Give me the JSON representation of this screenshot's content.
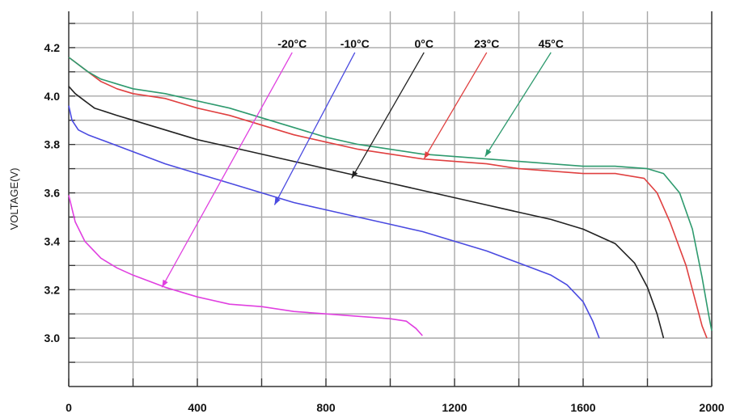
{
  "chart_data": {
    "type": "line",
    "ylabel": "VOLTAGE(V)",
    "xlabel": "",
    "xlim": [
      0,
      2000
    ],
    "ylim": [
      2.8,
      4.35
    ],
    "x_ticks": [
      "0",
      "400",
      "800",
      "1200",
      "1600",
      "2000"
    ],
    "y_ticks": [
      "3.0",
      "3.2",
      "3.4",
      "3.6",
      "3.8",
      "4.0",
      "4.2"
    ],
    "grid": true,
    "legend_placement": "top-center, labels with arrows pointing to curves",
    "series": [
      {
        "name": "-20°C",
        "color": "#e040e0",
        "label_pos": [
          695,
          4.2
        ],
        "arrow_to": [
          290,
          3.21
        ],
        "points": [
          [
            0,
            3.59
          ],
          [
            20,
            3.48
          ],
          [
            50,
            3.4
          ],
          [
            100,
            3.33
          ],
          [
            150,
            3.29
          ],
          [
            200,
            3.26
          ],
          [
            300,
            3.21
          ],
          [
            400,
            3.17
          ],
          [
            500,
            3.14
          ],
          [
            600,
            3.13
          ],
          [
            700,
            3.11
          ],
          [
            800,
            3.1
          ],
          [
            900,
            3.09
          ],
          [
            1000,
            3.08
          ],
          [
            1050,
            3.07
          ],
          [
            1080,
            3.04
          ],
          [
            1100,
            3.01
          ]
        ]
      },
      {
        "name": "-10°C",
        "color": "#4a4ae0",
        "label_pos": [
          890,
          4.2
        ],
        "arrow_to": [
          640,
          3.55
        ],
        "points": [
          [
            0,
            3.96
          ],
          [
            10,
            3.9
          ],
          [
            30,
            3.86
          ],
          [
            60,
            3.84
          ],
          [
            100,
            3.82
          ],
          [
            200,
            3.77
          ],
          [
            300,
            3.72
          ],
          [
            400,
            3.68
          ],
          [
            500,
            3.64
          ],
          [
            600,
            3.6
          ],
          [
            700,
            3.56
          ],
          [
            800,
            3.53
          ],
          [
            900,
            3.5
          ],
          [
            1000,
            3.47
          ],
          [
            1100,
            3.44
          ],
          [
            1200,
            3.4
          ],
          [
            1300,
            3.36
          ],
          [
            1400,
            3.31
          ],
          [
            1500,
            3.26
          ],
          [
            1550,
            3.22
          ],
          [
            1600,
            3.15
          ],
          [
            1630,
            3.07
          ],
          [
            1650,
            3.0
          ]
        ]
      },
      {
        "name": "0°C",
        "color": "#222222",
        "label_pos": [
          1105,
          4.2
        ],
        "arrow_to": [
          880,
          3.66
        ],
        "points": [
          [
            0,
            4.04
          ],
          [
            20,
            4.01
          ],
          [
            50,
            3.98
          ],
          [
            80,
            3.95
          ],
          [
            150,
            3.92
          ],
          [
            200,
            3.9
          ],
          [
            300,
            3.86
          ],
          [
            400,
            3.82
          ],
          [
            500,
            3.79
          ],
          [
            600,
            3.76
          ],
          [
            700,
            3.73
          ],
          [
            800,
            3.7
          ],
          [
            900,
            3.67
          ],
          [
            1000,
            3.64
          ],
          [
            1100,
            3.61
          ],
          [
            1200,
            3.58
          ],
          [
            1300,
            3.55
          ],
          [
            1400,
            3.52
          ],
          [
            1500,
            3.49
          ],
          [
            1600,
            3.45
          ],
          [
            1700,
            3.39
          ],
          [
            1760,
            3.31
          ],
          [
            1800,
            3.21
          ],
          [
            1830,
            3.1
          ],
          [
            1850,
            3.0
          ]
        ]
      },
      {
        "name": "23°C",
        "color": "#e04040",
        "label_pos": [
          1300,
          4.2
        ],
        "arrow_to": [
          1105,
          3.74
        ],
        "points": [
          [
            0,
            4.16
          ],
          [
            20,
            4.14
          ],
          [
            60,
            4.1
          ],
          [
            100,
            4.06
          ],
          [
            150,
            4.03
          ],
          [
            200,
            4.01
          ],
          [
            300,
            3.99
          ],
          [
            400,
            3.95
          ],
          [
            500,
            3.92
          ],
          [
            600,
            3.88
          ],
          [
            700,
            3.84
          ],
          [
            800,
            3.81
          ],
          [
            900,
            3.78
          ],
          [
            1000,
            3.76
          ],
          [
            1100,
            3.74
          ],
          [
            1200,
            3.73
          ],
          [
            1300,
            3.72
          ],
          [
            1400,
            3.7
          ],
          [
            1500,
            3.69
          ],
          [
            1600,
            3.68
          ],
          [
            1700,
            3.68
          ],
          [
            1790,
            3.66
          ],
          [
            1830,
            3.6
          ],
          [
            1870,
            3.48
          ],
          [
            1920,
            3.3
          ],
          [
            1950,
            3.15
          ],
          [
            1970,
            3.05
          ],
          [
            1985,
            3.0
          ]
        ]
      },
      {
        "name": "45°C",
        "color": "#2e9a6e",
        "label_pos": [
          1500,
          4.2
        ],
        "arrow_to": [
          1295,
          3.75
        ],
        "points": [
          [
            0,
            4.16
          ],
          [
            20,
            4.14
          ],
          [
            60,
            4.1
          ],
          [
            100,
            4.07
          ],
          [
            150,
            4.05
          ],
          [
            200,
            4.03
          ],
          [
            300,
            4.01
          ],
          [
            400,
            3.98
          ],
          [
            500,
            3.95
          ],
          [
            600,
            3.91
          ],
          [
            700,
            3.87
          ],
          [
            800,
            3.83
          ],
          [
            900,
            3.8
          ],
          [
            1000,
            3.78
          ],
          [
            1100,
            3.76
          ],
          [
            1200,
            3.75
          ],
          [
            1300,
            3.74
          ],
          [
            1400,
            3.73
          ],
          [
            1500,
            3.72
          ],
          [
            1600,
            3.71
          ],
          [
            1700,
            3.71
          ],
          [
            1800,
            3.7
          ],
          [
            1850,
            3.68
          ],
          [
            1900,
            3.6
          ],
          [
            1940,
            3.45
          ],
          [
            1970,
            3.25
          ],
          [
            1990,
            3.1
          ],
          [
            2000,
            3.03
          ]
        ]
      }
    ]
  }
}
